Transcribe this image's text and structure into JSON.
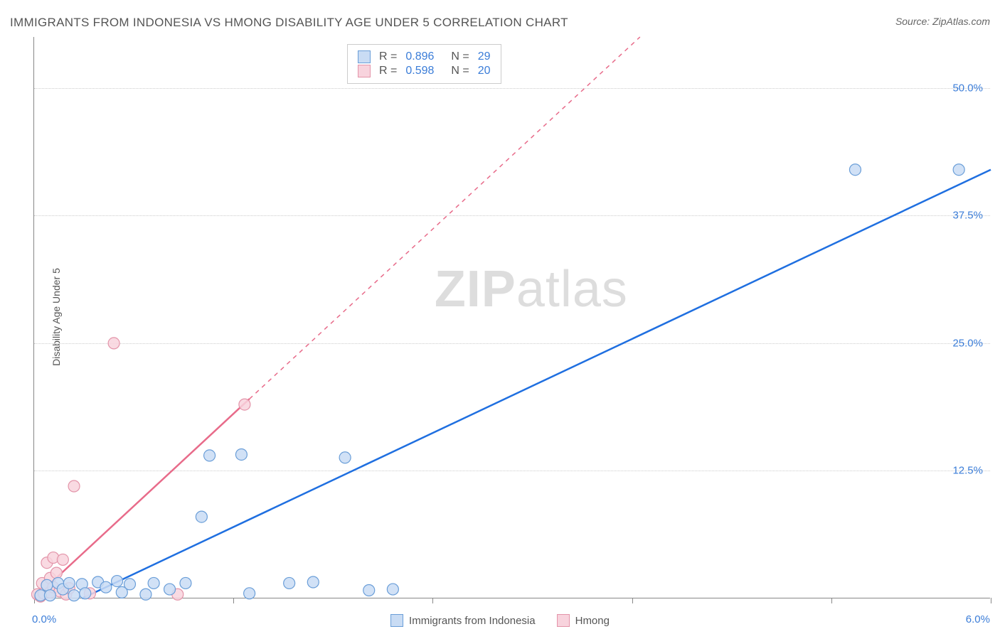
{
  "title": "IMMIGRANTS FROM INDONESIA VS HMONG DISABILITY AGE UNDER 5 CORRELATION CHART",
  "source_label": "Source:",
  "source_name": "ZipAtlas.com",
  "y_axis_label": "Disability Age Under 5",
  "watermark_zip": "ZIP",
  "watermark_atlas": "atlas",
  "chart": {
    "type": "scatter",
    "background_color": "#ffffff",
    "grid_color": "#cccccc",
    "axis_color": "#888888",
    "xlim": [
      0.0,
      6.0
    ],
    "ylim": [
      0.0,
      55.0
    ],
    "x_tick_label_min": "0.0%",
    "x_tick_label_max": "6.0%",
    "x_ticks": [
      0.0,
      1.25,
      2.5,
      3.75,
      5.0,
      6.0
    ],
    "y_ticks": [
      12.5,
      25.0,
      37.5,
      50.0
    ],
    "y_tick_labels": [
      "12.5%",
      "25.0%",
      "37.5%",
      "50.0%"
    ],
    "series": {
      "indonesia": {
        "label": "Immigrants from Indonesia",
        "color_fill": "#c9dcf4",
        "color_stroke": "#6a9ed8",
        "marker_radius": 8,
        "trend_color": "#1f6fe0",
        "trend_width": 2.5,
        "trend_dash": "none",
        "trend_line": {
          "x1": 0.3,
          "y1": 0.0,
          "x2": 6.0,
          "y2": 42.0
        },
        "R": "0.896",
        "N": "29",
        "points": [
          {
            "x": 0.04,
            "y": 0.3
          },
          {
            "x": 0.08,
            "y": 1.3
          },
          {
            "x": 0.1,
            "y": 0.3
          },
          {
            "x": 0.15,
            "y": 1.5
          },
          {
            "x": 0.18,
            "y": 0.9
          },
          {
            "x": 0.22,
            "y": 1.5
          },
          {
            "x": 0.25,
            "y": 0.3
          },
          {
            "x": 0.3,
            "y": 1.4
          },
          {
            "x": 0.32,
            "y": 0.5
          },
          {
            "x": 0.4,
            "y": 1.6
          },
          {
            "x": 0.45,
            "y": 1.1
          },
          {
            "x": 0.52,
            "y": 1.7
          },
          {
            "x": 0.55,
            "y": 0.6
          },
          {
            "x": 0.6,
            "y": 1.4
          },
          {
            "x": 0.7,
            "y": 0.4
          },
          {
            "x": 0.75,
            "y": 1.5
          },
          {
            "x": 0.85,
            "y": 0.9
          },
          {
            "x": 0.95,
            "y": 1.5
          },
          {
            "x": 1.05,
            "y": 8.0
          },
          {
            "x": 1.1,
            "y": 14.0
          },
          {
            "x": 1.3,
            "y": 14.1
          },
          {
            "x": 1.35,
            "y": 0.5
          },
          {
            "x": 1.6,
            "y": 1.5
          },
          {
            "x": 1.75,
            "y": 1.6
          },
          {
            "x": 1.95,
            "y": 13.8
          },
          {
            "x": 2.1,
            "y": 0.8
          },
          {
            "x": 2.25,
            "y": 0.9
          },
          {
            "x": 5.15,
            "y": 42.0
          },
          {
            "x": 5.8,
            "y": 42.0
          }
        ]
      },
      "hmong": {
        "label": "Hmong",
        "color_fill": "#f8d3dd",
        "color_stroke": "#e394a9",
        "marker_radius": 8,
        "trend_color": "#e86b8a",
        "trend_width": 2.5,
        "trend_dash_solid_end_x": 1.35,
        "trend_line": {
          "x1": 0.0,
          "y1": 0.0,
          "x2": 3.8,
          "y2": 55.0
        },
        "R": "0.598",
        "N": "20",
        "points": [
          {
            "x": 0.02,
            "y": 0.4
          },
          {
            "x": 0.04,
            "y": 0.2
          },
          {
            "x": 0.05,
            "y": 1.5
          },
          {
            "x": 0.06,
            "y": 0.5
          },
          {
            "x": 0.08,
            "y": 1.3
          },
          {
            "x": 0.08,
            "y": 3.5
          },
          {
            "x": 0.1,
            "y": 0.6
          },
          {
            "x": 0.1,
            "y": 2.0
          },
          {
            "x": 0.12,
            "y": 4.0
          },
          {
            "x": 0.12,
            "y": 1.1
          },
          {
            "x": 0.14,
            "y": 2.5
          },
          {
            "x": 0.16,
            "y": 0.7
          },
          {
            "x": 0.18,
            "y": 3.8
          },
          {
            "x": 0.2,
            "y": 0.4
          },
          {
            "x": 0.22,
            "y": 1.0
          },
          {
            "x": 0.25,
            "y": 11.0
          },
          {
            "x": 0.35,
            "y": 0.5
          },
          {
            "x": 0.5,
            "y": 25.0
          },
          {
            "x": 0.9,
            "y": 0.4
          },
          {
            "x": 1.32,
            "y": 19.0
          }
        ]
      }
    },
    "stats_box_labels": {
      "R": "R =",
      "N": "N ="
    },
    "legend_position": "bottom-center"
  }
}
